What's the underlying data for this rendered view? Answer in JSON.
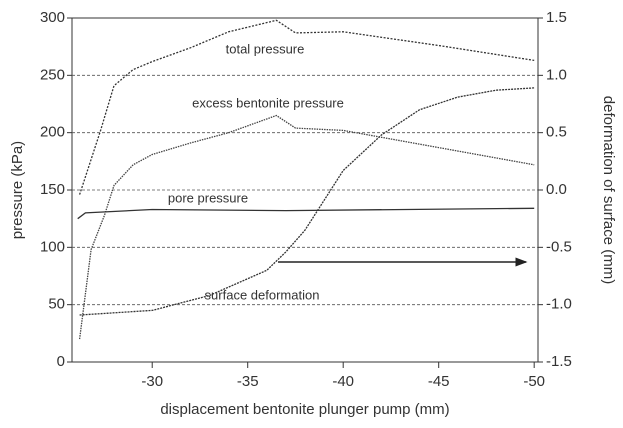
{
  "chart_data": {
    "type": "line",
    "xlabel": "displacement bentonite plunger pump (mm)",
    "ylabel": "pressure (kPa)",
    "y2label": "deformation of surface (mm)",
    "xlim": [
      -25.8,
      -50.2
    ],
    "xticks": [
      -30,
      -35,
      -40,
      -45,
      -50
    ],
    "ylim": [
      0,
      300
    ],
    "yticks": [
      0,
      50,
      100,
      150,
      200,
      250,
      300
    ],
    "y2lim": [
      -1.5,
      1.5
    ],
    "y2ticks": [
      -1.5,
      {
        "value": -1,
        "label": "-1.0"
      },
      -0.5,
      {
        "value": 0,
        "label": "0.0"
      },
      0.5,
      {
        "value": 1,
        "label": "1.0"
      },
      1.5
    ],
    "grid": true,
    "series": [
      {
        "name": "total pressure",
        "color": "#333333",
        "x": [
          -26.2,
          -27.3,
          -28,
          -29,
          -30,
          -32,
          -34,
          -36.5,
          -37.5,
          -40,
          -45,
          -50
        ],
        "values": [
          146,
          202,
          241,
          255,
          262,
          274,
          288,
          298,
          287,
          288,
          276,
          263
        ]
      },
      {
        "name": "excess bentonite pressure",
        "color": "#444444",
        "x": [
          -26.2,
          -26.8,
          -27.5,
          -28,
          -29,
          -30,
          -32,
          -34,
          -36.5,
          -37.5,
          -40,
          -45,
          -50
        ],
        "values": [
          20,
          98,
          128,
          154,
          172,
          181,
          191,
          200,
          215,
          204,
          202,
          187,
          172
        ]
      },
      {
        "name": "pore pressure",
        "color": "#333333",
        "x": [
          -26.1,
          -26.5,
          -30,
          -37,
          -50
        ],
        "values": [
          125,
          130,
          133,
          132,
          134
        ]
      },
      {
        "name": "surface deformation",
        "color": "#333333",
        "axis": "y2",
        "x": [
          -26.2,
          -30,
          -33,
          -36,
          -37,
          -38,
          -39,
          -40,
          -42,
          -44,
          -46,
          -48,
          -50
        ],
        "values": [
          -1.09,
          -1.05,
          -0.92,
          -0.7,
          -0.54,
          -0.35,
          -0.09,
          0.17,
          0.48,
          0.7,
          0.81,
          0.87,
          0.89
        ]
      }
    ]
  }
}
